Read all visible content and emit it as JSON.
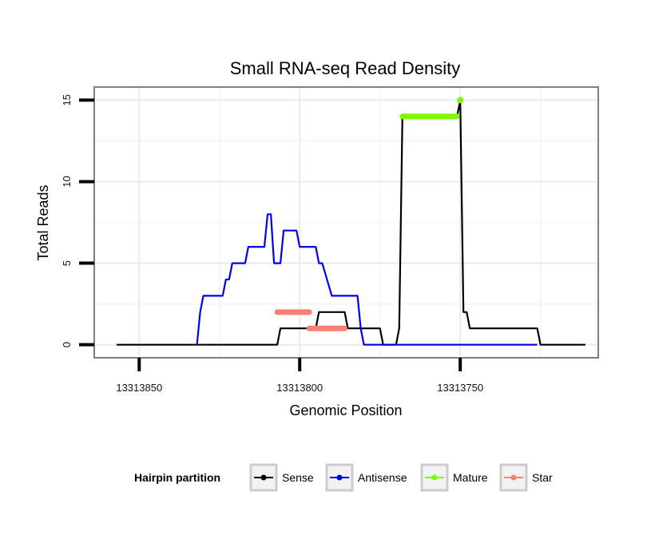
{
  "chart_data": {
    "type": "line",
    "title": "Small RNA-seq Read Density",
    "xlabel": "Genomic Position",
    "ylabel": "Total Reads",
    "x_reversed": true,
    "xlim": [
      13313864,
      13313707
    ],
    "ylim": [
      -0.8,
      15.8
    ],
    "x_ticks": [
      13313850,
      13313800,
      13313750
    ],
    "x_tick_labels": [
      "13313850",
      "13313800",
      "13313750"
    ],
    "y_ticks": [
      0,
      5,
      10,
      15
    ],
    "y_tick_labels": [
      "0",
      "5",
      "10",
      "15"
    ],
    "grid": true,
    "legend": {
      "title": "Hairpin partition",
      "placement": "bottom",
      "entries": [
        {
          "label": "Sense",
          "color": "#000000"
        },
        {
          "label": "Antisense",
          "color": "#0000ee"
        },
        {
          "label": "Mature",
          "color": "#7cfc00"
        },
        {
          "label": "Star",
          "color": "#fa8072"
        }
      ]
    },
    "series": [
      {
        "name": "Sense",
        "color": "#000000",
        "points": [
          [
            13313857,
            0
          ],
          [
            13313807,
            0
          ],
          [
            13313806,
            1
          ],
          [
            13313795,
            1
          ],
          [
            13313794,
            2
          ],
          [
            13313786,
            2
          ],
          [
            13313785,
            1
          ],
          [
            13313775,
            1
          ],
          [
            13313774,
            0
          ],
          [
            13313770,
            0
          ],
          [
            13313769,
            1
          ],
          [
            13313768,
            14
          ],
          [
            13313751,
            14
          ],
          [
            13313750,
            15
          ],
          [
            13313749,
            2
          ],
          [
            13313748,
            2
          ],
          [
            13313747,
            1
          ],
          [
            13313726,
            1
          ],
          [
            13313725,
            0
          ],
          [
            13313711,
            0
          ]
        ]
      },
      {
        "name": "Antisense",
        "color": "#0000ee",
        "points": [
          [
            13313832,
            0
          ],
          [
            13313831,
            2
          ],
          [
            13313830,
            3
          ],
          [
            13313824,
            3
          ],
          [
            13313823,
            4
          ],
          [
            13313822,
            4
          ],
          [
            13313821,
            5
          ],
          [
            13313817,
            5
          ],
          [
            13313816,
            6
          ],
          [
            13313811,
            6
          ],
          [
            13313810,
            8
          ],
          [
            13313809,
            8
          ],
          [
            13313808,
            5
          ],
          [
            13313806,
            5
          ],
          [
            13313805,
            7
          ],
          [
            13313801,
            7
          ],
          [
            13313800,
            6
          ],
          [
            13313795,
            6
          ],
          [
            13313794,
            5
          ],
          [
            13313793,
            5
          ],
          [
            13313790,
            3
          ],
          [
            13313782,
            3
          ],
          [
            13313781,
            1
          ],
          [
            13313780,
            0
          ],
          [
            13313726,
            0
          ]
        ]
      },
      {
        "name": "Mature",
        "color": "#7cfc00",
        "segments": [
          {
            "x0": 13313768,
            "x1": 13313751,
            "y": 14
          }
        ],
        "points": [
          [
            13313750,
            15
          ]
        ]
      },
      {
        "name": "Star",
        "color": "#fa8072",
        "segments": [
          {
            "x0": 13313807,
            "x1": 13313797,
            "y": 2
          },
          {
            "x0": 13313797,
            "x1": 13313786,
            "y": 1
          }
        ],
        "points": []
      }
    ]
  }
}
